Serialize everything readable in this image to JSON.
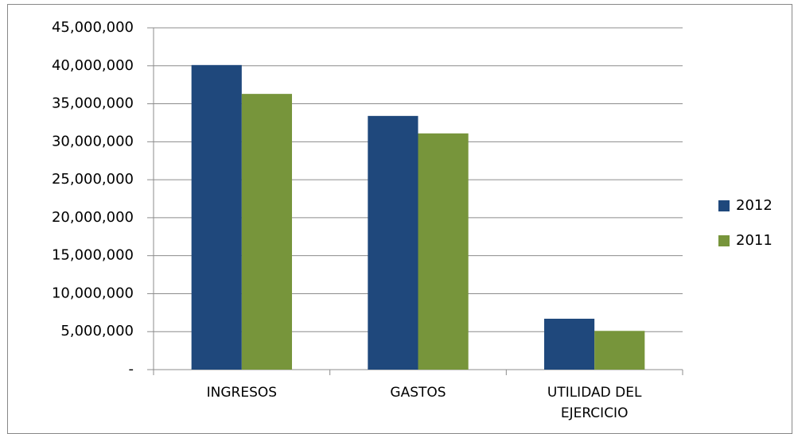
{
  "chart_data": {
    "type": "bar",
    "categories": [
      "INGRESOS",
      "GASTOS",
      "UTILIDAD DEL EJERCICIO"
    ],
    "series": [
      {
        "name": "2012",
        "color": "#1f487c",
        "values": [
          40100000,
          33400000,
          6700000
        ]
      },
      {
        "name": "2011",
        "color": "#77953b",
        "values": [
          36300000,
          31100000,
          5100000
        ]
      }
    ],
    "ylim": [
      0,
      45000000
    ],
    "yticks": [
      {
        "value": 0,
        "label": "-"
      },
      {
        "value": 5000000,
        "label": "5,000,000"
      },
      {
        "value": 10000000,
        "label": "10,000,000"
      },
      {
        "value": 15000000,
        "label": "15,000,000"
      },
      {
        "value": 20000000,
        "label": "20,000,000"
      },
      {
        "value": 25000000,
        "label": "25,000,000"
      },
      {
        "value": 30000000,
        "label": "30,000,000"
      },
      {
        "value": 35000000,
        "label": "35,000,000"
      },
      {
        "value": 40000000,
        "label": "40,000,000"
      },
      {
        "value": 45000000,
        "label": "45,000,000"
      }
    ],
    "grid": true,
    "legend": "right"
  }
}
